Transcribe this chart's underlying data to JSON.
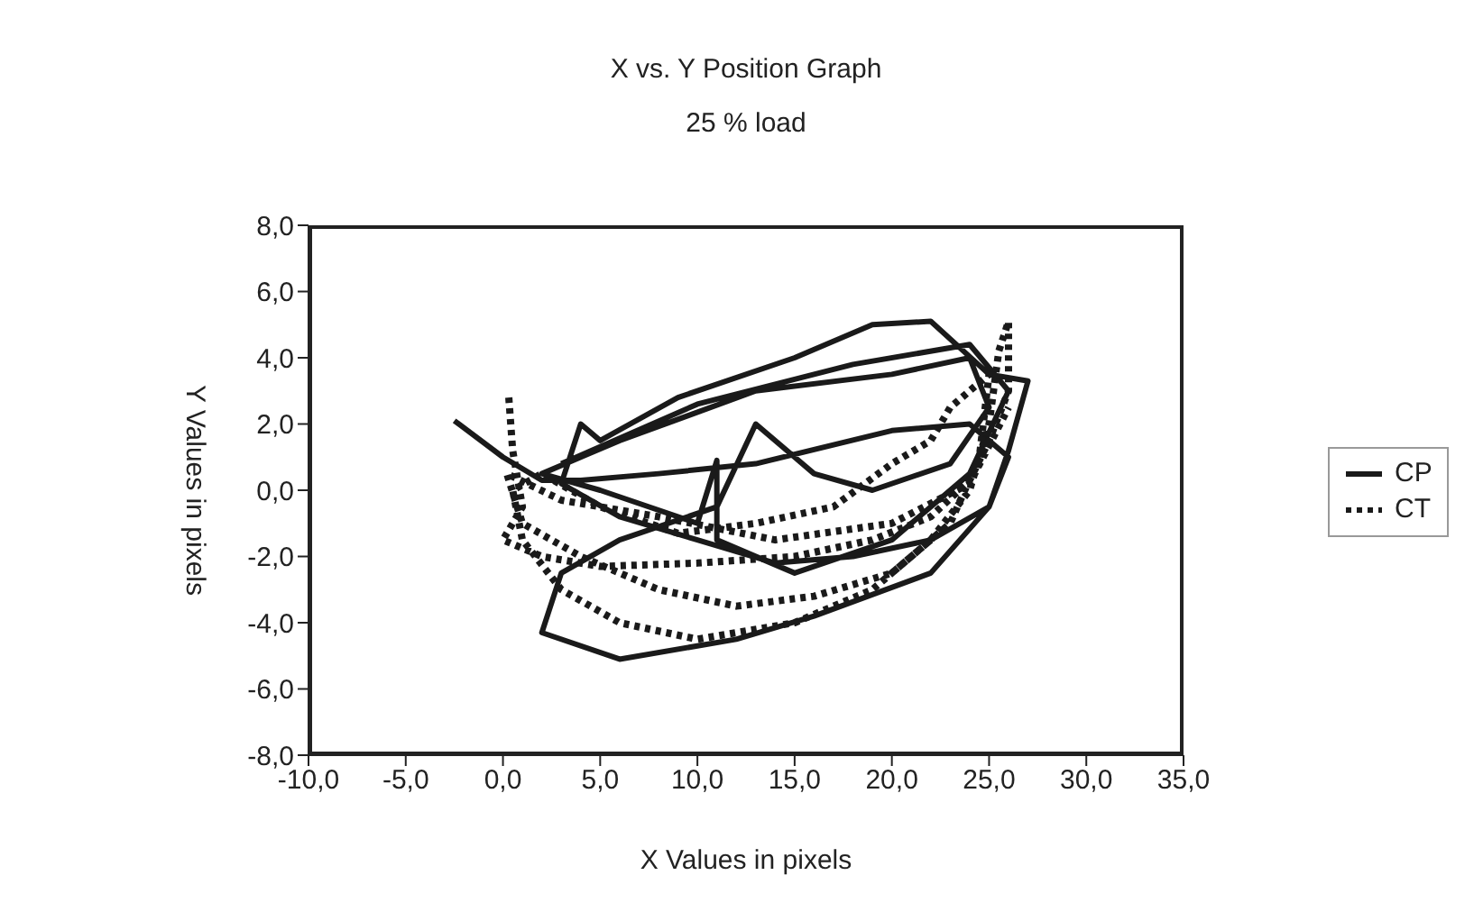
{
  "chart_data": {
    "type": "line",
    "title": "X vs. Y Position Graph",
    "subtitle": "25 % load",
    "xlabel": "X Values in pixels",
    "ylabel": "Y Values in pixels",
    "xlim": [
      -10,
      35
    ],
    "xticks": [
      {
        "value": -10,
        "label": "-10,0"
      },
      {
        "value": -5,
        "label": "-5,0"
      },
      {
        "value": 0,
        "label": "0,0"
      },
      {
        "value": 5,
        "label": "5,0"
      },
      {
        "value": 10,
        "label": "10,0"
      },
      {
        "value": 15,
        "label": "15,0"
      },
      {
        "value": 20,
        "label": "20,0"
      },
      {
        "value": 25,
        "label": "25,0"
      },
      {
        "value": 30,
        "label": "30,0"
      },
      {
        "value": 35,
        "label": "35,0"
      }
    ],
    "ylim": [
      -8,
      8
    ],
    "yticks": [
      {
        "value": -8,
        "label": "-8,0"
      },
      {
        "value": -6,
        "label": "-6,0"
      },
      {
        "value": -4,
        "label": "-4,0"
      },
      {
        "value": -2,
        "label": "-2,0"
      },
      {
        "value": 0,
        "label": "0,0"
      },
      {
        "value": 2,
        "label": "2,0"
      },
      {
        "value": 4,
        "label": "4,0"
      },
      {
        "value": 6,
        "label": "6,0"
      },
      {
        "value": 8,
        "label": "8,0"
      }
    ],
    "grid": false,
    "legend": "right",
    "marker": "none",
    "series": [
      {
        "name": "CP",
        "color": "#1a1a1a",
        "line_style": "solid",
        "x": [
          -2.5,
          0,
          2,
          4,
          8,
          13,
          20,
          24,
          26,
          25,
          22,
          18,
          14,
          10,
          6,
          3,
          4,
          5,
          9,
          15,
          19,
          22,
          25,
          27,
          26,
          25,
          22,
          16,
          12,
          6,
          2,
          3,
          6,
          11,
          13,
          16,
          19,
          23,
          25,
          24,
          20,
          13,
          6,
          2,
          5,
          10,
          11,
          11,
          15,
          20,
          24,
          26,
          24,
          18,
          10,
          3
        ],
        "values": [
          2.1,
          1.0,
          0.3,
          0.3,
          0.5,
          0.8,
          1.8,
          2.0,
          1.0,
          -0.5,
          -1.5,
          -2.0,
          -2.2,
          -1.5,
          -0.8,
          0.2,
          2.0,
          1.5,
          2.8,
          4.0,
          5.0,
          5.1,
          3.5,
          3.3,
          1.2,
          -0.5,
          -2.5,
          -3.8,
          -4.5,
          -5.1,
          -4.3,
          -2.5,
          -1.5,
          -0.5,
          2.0,
          0.5,
          0,
          0.8,
          2.5,
          4.0,
          3.5,
          3.0,
          1.5,
          0.5,
          0,
          -1,
          0.9,
          -1.5,
          -2.5,
          -1.5,
          0.5,
          3.0,
          4.4,
          3.8,
          2.6,
          0.8
        ]
      },
      {
        "name": "CT",
        "color": "#1a1a1a",
        "line_style": "dotted",
        "x": [
          0.3,
          0.5,
          1,
          0,
          2,
          5,
          10,
          15,
          19,
          22,
          24,
          25,
          26,
          26,
          25.5,
          25,
          24,
          22,
          19,
          15,
          10,
          6,
          3,
          1,
          0.5,
          2,
          5,
          9,
          13,
          17,
          20,
          22,
          23,
          25,
          24.5,
          23,
          20,
          16,
          12,
          8,
          4,
          1,
          0.2,
          3,
          8,
          14,
          20,
          24,
          26
        ],
        "values": [
          2.8,
          1.2,
          -0.5,
          -1.5,
          -2,
          -2.3,
          -2.2,
          -2,
          -1.5,
          -0.8,
          0.3,
          1.5,
          3,
          5.1,
          4.2,
          2,
          0,
          -1.5,
          -3,
          -4,
          -4.5,
          -4,
          -3,
          -1.5,
          0,
          0.5,
          -0.5,
          -1.3,
          -1.0,
          -0.5,
          0.8,
          1.5,
          2.5,
          3.5,
          1,
          -1,
          -2.5,
          -3.2,
          -3.5,
          -3,
          -2,
          -1.0,
          0.5,
          -0.3,
          -0.8,
          -1.5,
          -1.0,
          0.2,
          2.5
        ]
      }
    ]
  }
}
